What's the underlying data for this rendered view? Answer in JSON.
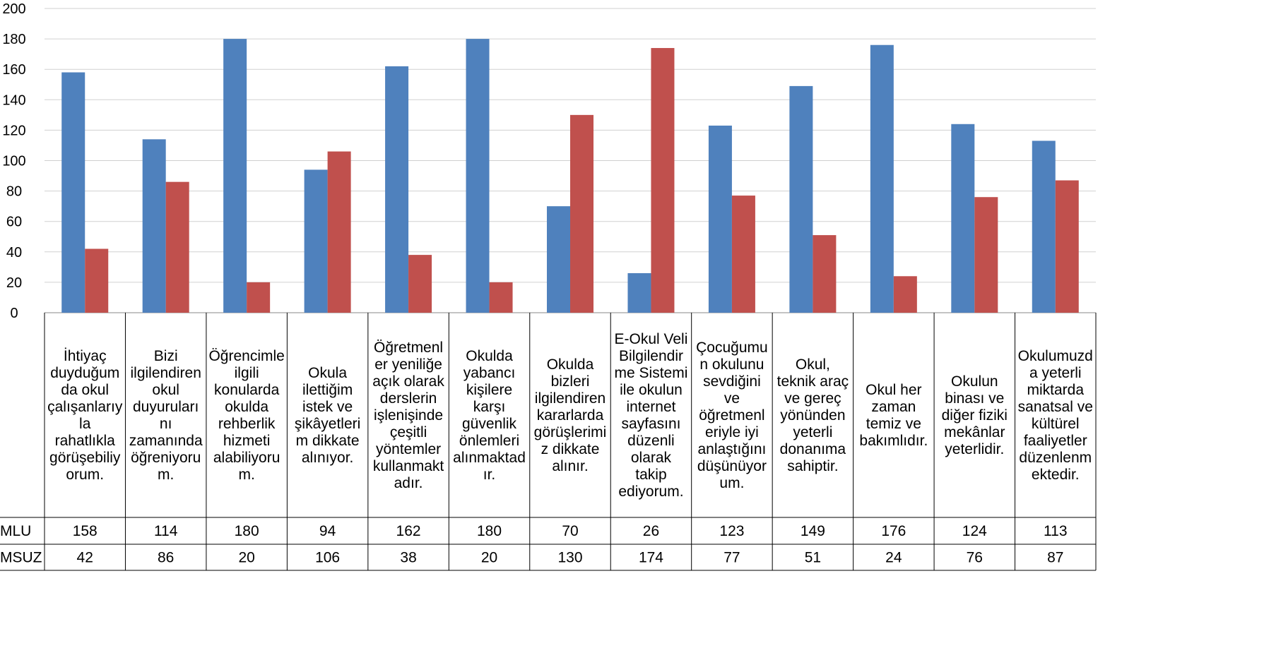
{
  "chart_data": {
    "type": "bar",
    "title": "",
    "xlabel": "",
    "ylabel": "",
    "ylim": [
      0,
      200
    ],
    "yticks": [
      0,
      20,
      40,
      60,
      80,
      100,
      120,
      140,
      160,
      180,
      200
    ],
    "grid": true,
    "legend": "data-table",
    "categories": [
      [
        "İhtiyaç",
        "duyduğum",
        "da okul",
        "çalışanlarıy",
        "la",
        "rahatlıkla",
        "görüşebiliy",
        "orum."
      ],
      [
        "Bizi",
        "ilgilendiren",
        "okul",
        "duyuruları",
        "nı",
        "zamanında",
        "öğreniyoru",
        "m."
      ],
      [
        "Öğrencimle",
        "ilgili",
        "konularda",
        "okulda",
        "rehberlik",
        "hizmeti",
        "alabiliyoru",
        "m."
      ],
      [
        "Okula",
        "ilettiğim",
        "istek ve",
        "şikâyetleri",
        "m dikkate",
        "alınıyor."
      ],
      [
        "Öğretmenl",
        "er yeniliğe",
        "açık olarak",
        "derslerin",
        "işlenişinde",
        "çeşitli",
        "yöntemler",
        "kullanmakt",
        "adır."
      ],
      [
        "Okulda",
        "yabancı",
        "kişilere",
        "karşı",
        "güvenlik",
        "önlemleri",
        "alınmaktad",
        "ır."
      ],
      [
        "Okulda",
        "bizleri",
        "ilgilendiren",
        "kararlarda",
        "görüşlerimi",
        "z dikkate",
        "alınır."
      ],
      [
        "E-Okul Veli",
        "Bilgilendir",
        "me Sistemi",
        "ile okulun",
        "internet",
        "sayfasını",
        "düzenli",
        "olarak",
        "takip",
        "ediyorum."
      ],
      [
        "Çocuğumu",
        "n okulunu",
        "sevdiğini",
        "ve",
        "öğretmenl",
        "eriyle iyi",
        "anlaştığını",
        "düşünüyor",
        "um."
      ],
      [
        "Okul,",
        "teknik araç",
        "ve gereç",
        "yönünden",
        "yeterli",
        "donanıma",
        "sahiptir."
      ],
      [
        "Okul her",
        "zaman",
        "temiz ve",
        "bakımlıdır."
      ],
      [
        "Okulun",
        "binası ve",
        "diğer fiziki",
        "mekânlar",
        "yeterlidir."
      ],
      [
        "Okulumuzd",
        "a yeterli",
        "miktarda",
        "sanatsal ve",
        "kültürel",
        "faaliyetler",
        "düzenlenm",
        "ektedir."
      ]
    ],
    "series": [
      {
        "name": "MLU",
        "color": "#4F81BD",
        "values": [
          158,
          114,
          180,
          94,
          162,
          180,
          70,
          26,
          123,
          149,
          176,
          124,
          113
        ]
      },
      {
        "name": "MSUZ",
        "color": "#C0504D",
        "values": [
          42,
          86,
          20,
          106,
          38,
          20,
          130,
          174,
          77,
          51,
          24,
          76,
          87
        ]
      }
    ]
  }
}
